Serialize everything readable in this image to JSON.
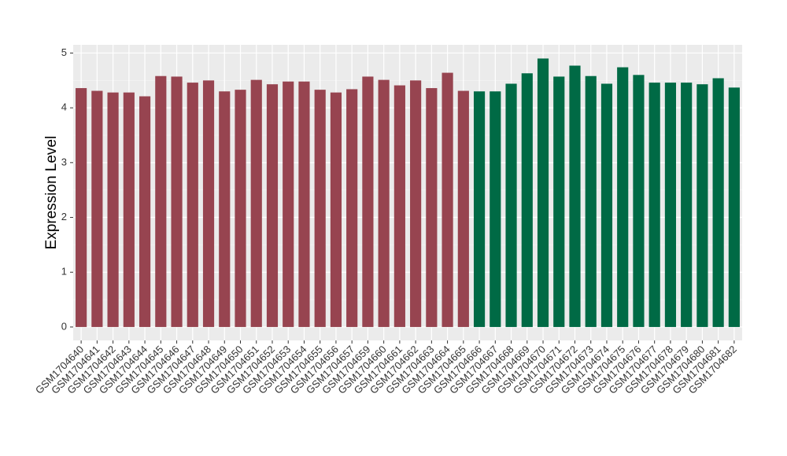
{
  "chart_data": {
    "type": "bar",
    "y_label": "Expression Level",
    "categories": [
      "GSM1704640",
      "GSM1704641",
      "GSM1704642",
      "GSM1704643",
      "GSM1704644",
      "GSM1704645",
      "GSM1704646",
      "GSM1704647",
      "GSM1704648",
      "GSM1704649",
      "GSM1704650",
      "GSM1704651",
      "GSM1704652",
      "GSM1704653",
      "GSM1704654",
      "GSM1704655",
      "GSM1704656",
      "GSM1704657",
      "GSM1704659",
      "GSM1704660",
      "GSM1704661",
      "GSM1704662",
      "GSM1704663",
      "GSM1704664",
      "GSM1704665",
      "GSM1704666",
      "GSM1704667",
      "GSM1704668",
      "GSM1704669",
      "GSM1704670",
      "GSM1704671",
      "GSM1704672",
      "GSM1704673",
      "GSM1704674",
      "GSM1704675",
      "GSM1704676",
      "GSM1704677",
      "GSM1704678",
      "GSM1704679",
      "GSM1704680",
      "GSM1704681",
      "GSM1704682"
    ],
    "values": [
      4.36,
      4.31,
      4.28,
      4.28,
      4.21,
      4.58,
      4.57,
      4.46,
      4.5,
      4.3,
      4.33,
      4.51,
      4.43,
      4.48,
      4.48,
      4.33,
      4.28,
      4.34,
      4.57,
      4.51,
      4.41,
      4.5,
      4.36,
      4.64,
      4.31,
      4.3,
      4.3,
      4.44,
      4.63,
      4.9,
      4.57,
      4.77,
      4.58,
      4.44,
      4.74,
      4.6,
      4.46,
      4.46,
      4.46,
      4.43,
      4.54,
      4.37
    ],
    "colors": [
      "#974450",
      "#974450",
      "#974450",
      "#974450",
      "#974450",
      "#974450",
      "#974450",
      "#974450",
      "#974450",
      "#974450",
      "#974450",
      "#974450",
      "#974450",
      "#974450",
      "#974450",
      "#974450",
      "#974450",
      "#974450",
      "#974450",
      "#974450",
      "#974450",
      "#974450",
      "#974450",
      "#974450",
      "#974450",
      "#006a45",
      "#006a45",
      "#006a45",
      "#006a45",
      "#006a45",
      "#006a45",
      "#006a45",
      "#006a45",
      "#006a45",
      "#006a45",
      "#006a45",
      "#006a45",
      "#006a45",
      "#006a45",
      "#006a45",
      "#006a45",
      "#006a45"
    ],
    "ylim": [
      -0.245,
      5.15
    ],
    "yticks": [
      0,
      1,
      2,
      3,
      4,
      5
    ],
    "grid": true
  }
}
